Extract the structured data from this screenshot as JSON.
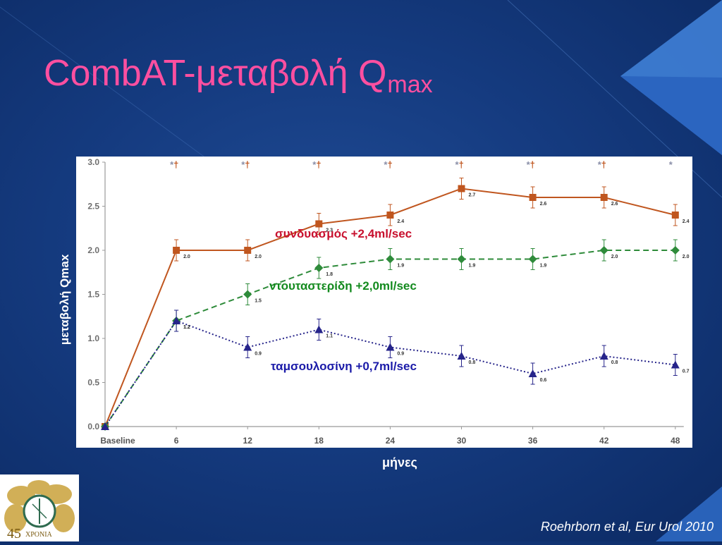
{
  "slide": {
    "title_main": "CombAT-μεταβολή Q",
    "title_sub": "max",
    "citation": "Roehrborn et al, Eur Urol 2010",
    "logo_number": "45",
    "logo_text": "ΧΡΟΝΙΑ"
  },
  "chart_data": {
    "type": "line",
    "title": "",
    "xlabel": "μήνες",
    "ylabel": "μεταβολή Qmax",
    "categories": [
      "Baseline",
      "6",
      "12",
      "18",
      "24",
      "30",
      "36",
      "42",
      "48"
    ],
    "ylim": [
      0,
      3.0
    ],
    "yticks": [
      "0.0",
      "0.5",
      "1.0",
      "1.5",
      "2.0",
      "2.5",
      "3.0"
    ],
    "grid": false,
    "significance_markers": [
      "*†",
      "*†",
      "*†",
      "*†",
      "*†",
      "*†",
      "*†",
      "*"
    ],
    "series": [
      {
        "name": "συνδυασμός",
        "color": "#c0561f",
        "line_style": "solid",
        "marker": "square",
        "values": [
          0,
          2.0,
          2.0,
          2.3,
          2.4,
          2.7,
          2.6,
          2.6,
          2.4
        ],
        "point_labels": [
          "",
          "2.0",
          "2.0",
          "2.3",
          "2.4",
          "2.7",
          "2.6",
          "2.6",
          "2.4"
        ],
        "error": [
          0,
          0.12,
          0.12,
          0.12,
          0.12,
          0.12,
          0.12,
          0.12,
          0.12
        ]
      },
      {
        "name": "ντουταστερίδη",
        "color": "#2e8b3a",
        "line_style": "dashed",
        "marker": "diamond",
        "values": [
          0,
          1.2,
          1.5,
          1.8,
          1.9,
          1.9,
          1.9,
          2.0,
          2.0
        ],
        "point_labels": [
          "",
          "1.2",
          "1.5",
          "1.8",
          "1.9",
          "1.9",
          "1.9",
          "2.0",
          "2.0"
        ],
        "error": [
          0,
          0.12,
          0.12,
          0.12,
          0.12,
          0.12,
          0.12,
          0.12,
          0.12
        ]
      },
      {
        "name": "ταμσουλοσίνη",
        "color": "#26248a",
        "line_style": "dotted",
        "marker": "triangle",
        "values": [
          0,
          1.2,
          0.9,
          1.1,
          0.9,
          0.8,
          0.6,
          0.8,
          0.7
        ],
        "point_labels": [
          "",
          "1.2",
          "0.9",
          "1.1",
          "0.9",
          "0.8",
          "0.6",
          "0.8",
          "0.7"
        ],
        "error": [
          0,
          0.12,
          0.12,
          0.12,
          0.12,
          0.12,
          0.12,
          0.12,
          0.12
        ]
      }
    ],
    "annotations": [
      {
        "text": "συνδυασμός +2,4ml/sec",
        "color": "#c8102e"
      },
      {
        "text": "ντουταστερίδη +2,0ml/sec",
        "color": "#138a1e"
      },
      {
        "text": "ταμσουλοσίνη +0,7ml/sec",
        "color": "#1a1aa8"
      }
    ]
  }
}
